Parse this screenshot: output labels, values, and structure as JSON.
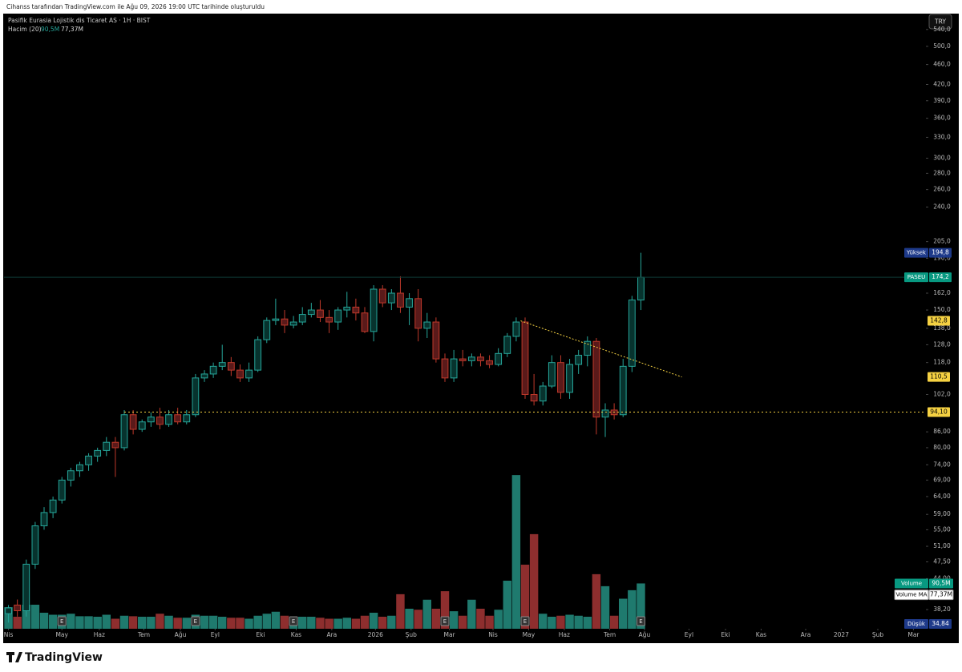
{
  "chart_data": {
    "type": "candlestick",
    "subtitle": "Cihanss tarafından TradingView.com ile Ağu 09, 2026 19:00 UTC tarihinde oluşturuldu",
    "title": "Pasifik Eurasia Lojistik dis Ticaret AS · 1H · BIST",
    "currency": "TRY",
    "indicator": {
      "name": "Hacim (20)",
      "value": 90.5,
      "value_label": "90,5M",
      "ma": 77.37,
      "ma_label": "77,37M"
    },
    "open": [
      37.5,
      39,
      38,
      47,
      56,
      59.5,
      63,
      69,
      72,
      74,
      77,
      79,
      82,
      80,
      93,
      87,
      90,
      92,
      89,
      93,
      90,
      93,
      110,
      112,
      116,
      118,
      114,
      110,
      114,
      131,
      143,
      144,
      140,
      142,
      147,
      150,
      145,
      142,
      150,
      152,
      148,
      136,
      165,
      155,
      162,
      152,
      158,
      138,
      142,
      120,
      110,
      120,
      119,
      121,
      119,
      117,
      123,
      133,
      142,
      102,
      99,
      106,
      118,
      103,
      117,
      122,
      130,
      92,
      95,
      93,
      116,
      157
    ],
    "high": [
      39,
      40,
      48,
      57,
      61,
      64,
      70,
      73,
      75,
      78,
      80,
      84,
      84,
      95,
      95,
      91,
      94,
      96,
      95,
      96,
      95,
      112,
      114,
      118,
      128,
      121,
      117,
      118,
      133,
      145,
      158,
      150,
      146,
      152,
      155,
      157,
      150,
      152,
      163,
      158,
      152,
      168,
      168,
      165,
      175,
      162,
      165,
      148,
      145,
      123,
      125,
      125,
      123,
      123,
      122,
      126,
      135,
      145,
      145,
      112,
      108,
      122,
      122,
      120,
      125,
      133,
      132,
      98,
      98,
      120,
      160,
      194.8
    ],
    "low": [
      36,
      37,
      37,
      46,
      55,
      58,
      62,
      67,
      70,
      72,
      75,
      77,
      70,
      79,
      85,
      86,
      88,
      87,
      88,
      89,
      89,
      92,
      108,
      110,
      114,
      111,
      108,
      108,
      113,
      129,
      140,
      135,
      138,
      140,
      145,
      142,
      135,
      137,
      145,
      143,
      135,
      130,
      152,
      150,
      148,
      140,
      130,
      132,
      118,
      108,
      108,
      116,
      116,
      116,
      115,
      116,
      121,
      130,
      100,
      97,
      97,
      105,
      100,
      100,
      112,
      116,
      85,
      84,
      91,
      92,
      113,
      150
    ],
    "close": [
      38.5,
      38,
      47,
      56,
      59.5,
      63,
      69,
      72,
      74,
      77,
      79,
      82,
      80,
      93,
      87,
      90,
      92,
      89,
      93,
      90,
      93,
      110,
      112,
      116,
      118,
      114,
      110,
      114,
      131,
      143,
      144,
      140,
      142,
      147,
      150,
      145,
      142,
      150,
      152,
      148,
      136,
      165,
      155,
      162,
      152,
      158,
      138,
      142,
      120,
      110,
      120,
      119,
      121,
      119,
      117,
      123,
      133,
      142,
      102,
      99,
      106,
      118,
      103,
      117,
      122,
      130,
      92,
      95,
      93,
      116,
      157,
      174.2
    ],
    "volume": [
      43,
      24,
      48,
      48,
      32,
      28,
      28,
      30,
      25,
      25,
      24,
      28,
      20,
      26,
      25,
      24,
      24,
      30,
      26,
      22,
      22,
      28,
      26,
      26,
      24,
      22,
      22,
      20,
      26,
      30,
      34,
      26,
      20,
      24,
      24,
      22,
      20,
      20,
      22,
      20,
      26,
      32,
      24,
      26,
      69,
      40,
      38,
      58,
      40,
      75,
      35,
      26,
      58,
      40,
      26,
      38,
      96,
      307,
      128,
      189,
      30,
      24,
      26,
      28,
      26,
      24,
      109,
      85,
      26,
      60,
      77,
      90.5
    ],
    "up_color": "#26a69a",
    "down_color": "#c0392b",
    "up_volume_color": "#1f7a6e",
    "down_volume_color": "#8e2e2e",
    "log_scale": true,
    "ylim": [
      35,
      570
    ],
    "yticks": [
      {
        "value": 540,
        "label": "540,0"
      },
      {
        "value": 500,
        "label": "500,0"
      },
      {
        "value": 460,
        "label": "460,0"
      },
      {
        "value": 420,
        "label": "420,0"
      },
      {
        "value": 390,
        "label": "390,0"
      },
      {
        "value": 360,
        "label": "360,0"
      },
      {
        "value": 330,
        "label": "330,0"
      },
      {
        "value": 300,
        "label": "300,0"
      },
      {
        "value": 280,
        "label": "280,0"
      },
      {
        "value": 260,
        "label": "260,0"
      },
      {
        "value": 240,
        "label": "240,0"
      },
      {
        "value": 205,
        "label": "205,0"
      },
      {
        "value": 190,
        "label": "190,0"
      },
      {
        "value": 162,
        "label": "162,0"
      },
      {
        "value": 150,
        "label": "150,0"
      },
      {
        "value": 138,
        "label": "138,0"
      },
      {
        "value": 128,
        "label": "128,0"
      },
      {
        "value": 118,
        "label": "118,0"
      },
      {
        "value": 102,
        "label": "102,0"
      },
      {
        "value": 86,
        "label": "86,00"
      },
      {
        "value": 80,
        "label": "80,00"
      },
      {
        "value": 74,
        "label": "74,00"
      },
      {
        "value": 69,
        "label": "69,00"
      },
      {
        "value": 64,
        "label": "64,00"
      },
      {
        "value": 59,
        "label": "59,00"
      },
      {
        "value": 55,
        "label": "55,00"
      },
      {
        "value": 51,
        "label": "51,00"
      },
      {
        "value": 47.5,
        "label": "47,50"
      },
      {
        "value": 44,
        "label": "44,00"
      },
      {
        "value": 38.2,
        "label": "38,20"
      }
    ],
    "vlim": [
      0,
      400
    ],
    "xlim": [
      -0.5,
      103
    ],
    "xticks": [
      {
        "value": 0,
        "label": "Nis"
      },
      {
        "value": 6,
        "label": "May"
      },
      {
        "value": 10.2,
        "label": "Haz"
      },
      {
        "value": 15.2,
        "label": "Tem"
      },
      {
        "value": 19.3,
        "label": "Ağu"
      },
      {
        "value": 23.2,
        "label": "Eyl"
      },
      {
        "value": 28.3,
        "label": "Eki"
      },
      {
        "value": 32.3,
        "label": "Kas"
      },
      {
        "value": 36.3,
        "label": "Ara"
      },
      {
        "value": 41.2,
        "label": "2026"
      },
      {
        "value": 45.2,
        "label": "Şub"
      },
      {
        "value": 49.5,
        "label": "Mar"
      },
      {
        "value": 54.4,
        "label": "Nis"
      },
      {
        "value": 58.4,
        "label": "May"
      },
      {
        "value": 62.4,
        "label": "Haz"
      },
      {
        "value": 67.5,
        "label": "Tem"
      },
      {
        "value": 71.4,
        "label": "Ağu"
      },
      {
        "value": 76.4,
        "label": "Eyl"
      },
      {
        "value": 80.5,
        "label": "Eki"
      },
      {
        "value": 84.5,
        "label": "Kas"
      },
      {
        "value": 89.5,
        "label": "Ara"
      },
      {
        "value": 93.5,
        "label": "2027"
      },
      {
        "value": 97.6,
        "label": "Şub"
      },
      {
        "value": 101.6,
        "label": "Mar"
      }
    ],
    "earnings": {
      "label": "E",
      "x": [
        6,
        21,
        32,
        49,
        58,
        71
      ]
    },
    "price_labels": [
      {
        "name": "Yüksek",
        "value": 194.8,
        "label": "194,8",
        "color": "#1e3a8a"
      },
      {
        "name": "PASEU",
        "value": 174.2,
        "label": "174,2",
        "color": "#089981"
      },
      {
        "name": "Düşük",
        "value": 34.84,
        "label": "34,84",
        "color": "#1e3a8a"
      }
    ],
    "volume_labels": [
      {
        "name": "Volume",
        "value": 90.5,
        "label": "90,5M",
        "color": "#089981"
      },
      {
        "name": "Volume MA",
        "value": 77.37,
        "label": "77,37M",
        "color": "#ffffff"
      }
    ],
    "horizontal_line": {
      "value": 94.1,
      "label": "94,10",
      "x_start": 13,
      "color": "#f5d142"
    },
    "trend_line": {
      "x": [
        57.5,
        75.6
      ],
      "y": [
        142.8,
        110.5
      ],
      "labels": [
        "142,8",
        "110,5"
      ],
      "color": "#f5d142"
    },
    "footer": "TradingView"
  }
}
